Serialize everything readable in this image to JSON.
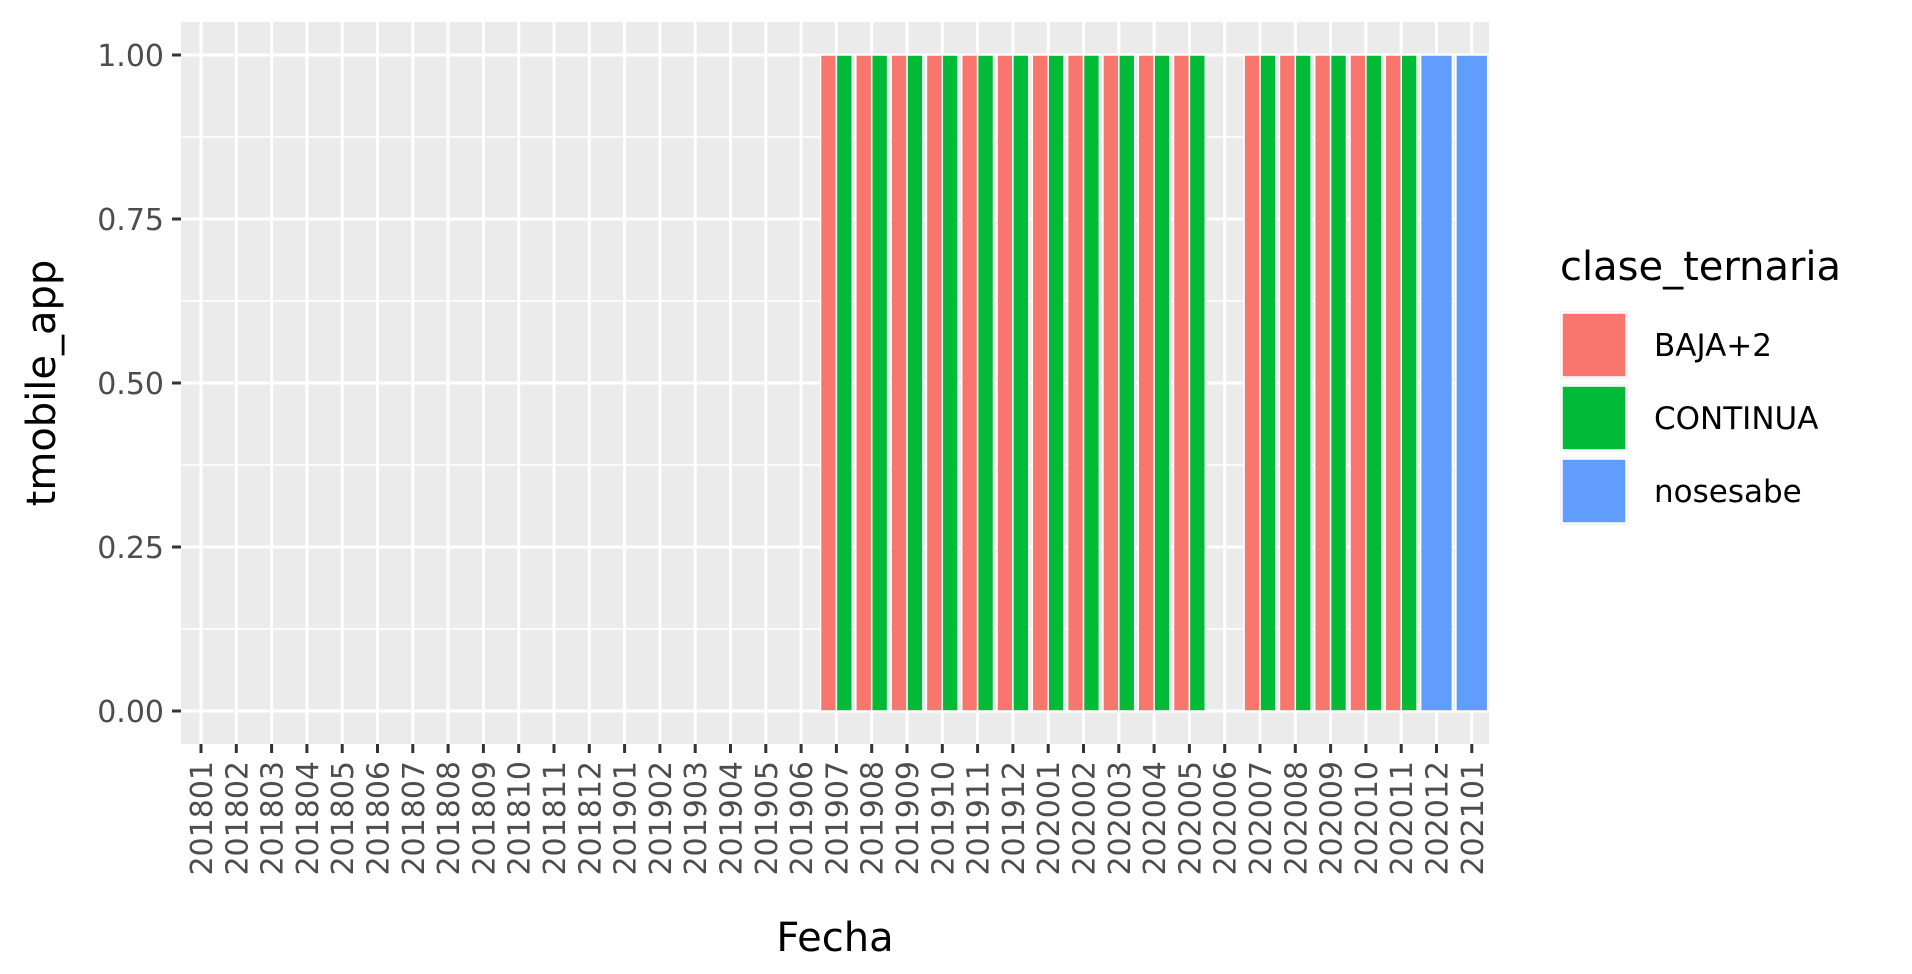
{
  "chart_data": {
    "type": "bar",
    "xlabel": "Fecha",
    "ylabel": "tmobile_app",
    "ylim": [
      0,
      1
    ],
    "yticks": [
      "0.00",
      "0.25",
      "0.50",
      "0.75",
      "1.00"
    ],
    "categories": [
      "201801",
      "201802",
      "201803",
      "201804",
      "201805",
      "201806",
      "201807",
      "201808",
      "201809",
      "201810",
      "201811",
      "201812",
      "201901",
      "201902",
      "201903",
      "201904",
      "201905",
      "201906",
      "201907",
      "201908",
      "201909",
      "201910",
      "201911",
      "201912",
      "202001",
      "202002",
      "202003",
      "202004",
      "202005",
      "202006",
      "202007",
      "202008",
      "202009",
      "202010",
      "202011",
      "202012",
      "202101"
    ],
    "legend": {
      "title": "clase_ternaria",
      "position": "right",
      "items": [
        {
          "label": "BAJA+2",
          "color": "#F8766D"
        },
        {
          "label": "CONTINUA",
          "color": "#00BA38"
        },
        {
          "label": "nosesabe",
          "color": "#619CFF"
        }
      ]
    },
    "series": [
      {
        "name": "BAJA+2",
        "color": "#F8766D",
        "values": [
          0,
          0,
          0,
          0,
          0,
          0,
          0,
          0,
          0,
          0,
          0,
          0,
          0,
          0,
          0,
          0,
          0,
          0,
          1,
          1,
          1,
          1,
          1,
          1,
          1,
          1,
          1,
          1,
          1,
          null,
          1,
          1,
          1,
          1,
          1,
          null,
          null
        ]
      },
      {
        "name": "CONTINUA",
        "color": "#00BA38",
        "values": [
          0,
          0,
          0,
          0,
          0,
          0,
          0,
          0,
          0,
          0,
          0,
          0,
          0,
          0,
          0,
          0,
          0,
          0,
          1,
          1,
          1,
          1,
          1,
          1,
          1,
          1,
          1,
          1,
          1,
          null,
          1,
          1,
          1,
          1,
          1,
          null,
          null
        ]
      },
      {
        "name": "nosesabe",
        "color": "#619CFF",
        "values": [
          null,
          null,
          null,
          null,
          null,
          null,
          null,
          null,
          null,
          null,
          null,
          null,
          null,
          null,
          null,
          null,
          null,
          null,
          null,
          null,
          null,
          null,
          null,
          null,
          null,
          null,
          null,
          null,
          null,
          null,
          null,
          null,
          null,
          null,
          null,
          1,
          1
        ]
      }
    ],
    "grid": true,
    "background": "#EBEBEB"
  }
}
